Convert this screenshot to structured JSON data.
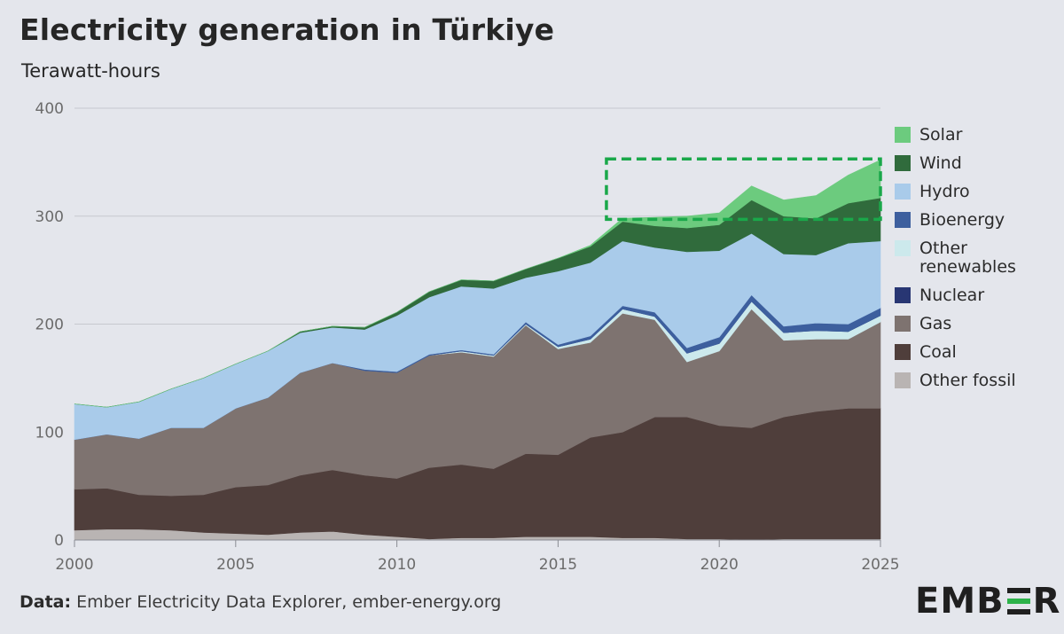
{
  "title": "Electricity generation in Türkiye",
  "subtitle": "Terawatt-hours",
  "footer": {
    "source_label": "Data:",
    "source_text": " Ember Electricity Data Explorer, ember-energy.org"
  },
  "logo": {
    "left": "EMB",
    "right": "R"
  },
  "chart_data": {
    "type": "area",
    "stacked": true,
    "title": "Electricity generation in Türkiye",
    "ylabel": "Terawatt-hours",
    "ylim": [
      0,
      400
    ],
    "yticks": [
      0,
      100,
      200,
      300,
      400
    ],
    "xlim": [
      2000,
      2025
    ],
    "xticks": [
      2000,
      2005,
      2010,
      2015,
      2020,
      2025
    ],
    "grid": true,
    "legend_position": "right",
    "x": [
      2000,
      2001,
      2002,
      2003,
      2004,
      2005,
      2006,
      2007,
      2008,
      2009,
      2010,
      2011,
      2012,
      2013,
      2014,
      2015,
      2016,
      2017,
      2018,
      2019,
      2020,
      2021,
      2022,
      2023,
      2024,
      2025
    ],
    "series": [
      {
        "name": "Other fossil",
        "color": "#b9b4b3",
        "values": [
          9,
          10,
          10,
          9,
          7,
          6,
          5,
          7,
          8,
          5,
          3,
          1,
          2,
          2,
          3,
          3,
          3,
          2,
          2,
          1,
          1,
          0,
          1,
          1,
          1,
          1
        ]
      },
      {
        "name": "Coal",
        "color": "#4f3e3b",
        "values": [
          38,
          38,
          32,
          32,
          35,
          43,
          46,
          53,
          57,
          55,
          54,
          66,
          68,
          64,
          77,
          76,
          92,
          98,
          112,
          113,
          105,
          104,
          113,
          118,
          121,
          121
        ]
      },
      {
        "name": "Gas",
        "color": "#7e7370",
        "values": [
          46,
          50,
          52,
          63,
          62,
          73,
          81,
          95,
          99,
          97,
          98,
          104,
          104,
          104,
          119,
          98,
          88,
          110,
          90,
          51,
          69,
          110,
          71,
          67,
          64,
          80
        ]
      },
      {
        "name": "Other renewables",
        "color": "#cce9ec",
        "values": [
          0,
          0,
          0,
          0,
          0,
          0,
          0,
          0,
          0,
          0,
          0,
          0,
          1,
          1,
          1,
          2,
          3,
          4,
          3,
          8,
          7,
          7,
          7,
          8,
          7,
          6
        ]
      },
      {
        "name": "Nuclear",
        "color": "#283673",
        "values": [
          0,
          0,
          0,
          0,
          0,
          0,
          0,
          0,
          0,
          0,
          0,
          0,
          0,
          0,
          0,
          0,
          0,
          0,
          0,
          0,
          0,
          0,
          0,
          0,
          0,
          0
        ]
      },
      {
        "name": "Bioenergy",
        "color": "#3d5f9e",
        "values": [
          0,
          0,
          0,
          0,
          0,
          0,
          0,
          0,
          0,
          1,
          1,
          1,
          1,
          1,
          2,
          2,
          3,
          3,
          4,
          5,
          6,
          6,
          6,
          7,
          7,
          7
        ]
      },
      {
        "name": "Hydro",
        "color": "#a9cbea",
        "values": [
          33,
          25,
          34,
          36,
          46,
          41,
          43,
          37,
          33,
          37,
          52,
          53,
          59,
          61,
          41,
          68,
          68,
          60,
          60,
          89,
          80,
          57,
          67,
          63,
          75,
          62
        ]
      },
      {
        "name": "Wind",
        "color": "#306b3c",
        "values": [
          0,
          0,
          0,
          0,
          0,
          0,
          0,
          1,
          1,
          2,
          3,
          5,
          6,
          7,
          8,
          12,
          15,
          18,
          20,
          22,
          24,
          31,
          35,
          34,
          37,
          40
        ]
      },
      {
        "name": "Solar",
        "color": "#6ccb7e",
        "values": [
          0,
          0,
          0,
          0,
          0,
          0,
          0,
          0,
          0,
          0,
          0,
          0,
          0,
          0,
          0,
          0,
          1,
          3,
          8,
          11,
          11,
          13,
          15,
          21,
          26,
          35
        ]
      }
    ],
    "legend": [
      "Solar",
      "Wind",
      "Hydro",
      "Bioenergy",
      "Other renewables",
      "Nuclear",
      "Gas",
      "Coal",
      "Other fossil"
    ],
    "annotation": {
      "type": "dashed-box",
      "color": "#1aa84a",
      "x_range": [
        2016.5,
        2025
      ],
      "y_range": [
        297,
        353
      ]
    }
  }
}
